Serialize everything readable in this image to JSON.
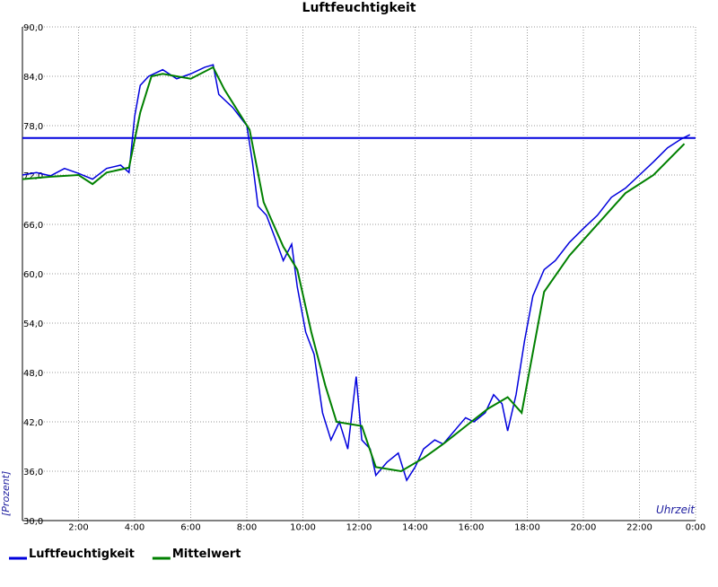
{
  "chart_data": {
    "type": "line",
    "title": "Luftfeuchtigkeit",
    "x_label": "Uhrzeit",
    "y_label": "[Prozent]",
    "xlim": [
      0,
      24
    ],
    "xticks": [
      {
        "value": 2,
        "label": "2:00"
      },
      {
        "value": 4,
        "label": "4:00"
      },
      {
        "value": 6,
        "label": "6:00"
      },
      {
        "value": 8,
        "label": "8:00"
      },
      {
        "value": 10,
        "label": "10:00"
      },
      {
        "value": 12,
        "label": "12:00"
      },
      {
        "value": 14,
        "label": "14:00"
      },
      {
        "value": 16,
        "label": "16:00"
      },
      {
        "value": 18,
        "label": "18:00"
      },
      {
        "value": 20,
        "label": "20:00"
      },
      {
        "value": 22,
        "label": "22:00"
      },
      {
        "value": 24,
        "label": "0:00"
      }
    ],
    "ylim": [
      30,
      90
    ],
    "yticks": [
      {
        "value": 30,
        "label": "30,0"
      },
      {
        "value": 36,
        "label": "36,0"
      },
      {
        "value": 42,
        "label": "42,0"
      },
      {
        "value": 48,
        "label": "48,0"
      },
      {
        "value": 54,
        "label": "54,0"
      },
      {
        "value": 60,
        "label": "60,0"
      },
      {
        "value": 66,
        "label": "66,0"
      },
      {
        "value": 72,
        "label": "72,0"
      },
      {
        "value": 78,
        "label": "78,0"
      },
      {
        "value": 84,
        "label": "84,0"
      },
      {
        "value": 90,
        "label": "90,0"
      }
    ],
    "grid": true,
    "reference_line": {
      "value": 76.5,
      "color": "#0000dd"
    },
    "series": [
      {
        "name": "Luftfeuchtigkeit",
        "color": "#0000dd",
        "x": [
          0,
          0.5,
          1,
          1.5,
          2,
          2.5,
          3,
          3.5,
          3.8,
          4.0,
          4.2,
          4.5,
          5,
          5.5,
          6,
          6.5,
          6.8,
          7,
          7.5,
          8.0,
          8.2,
          8.4,
          8.7,
          9.0,
          9.3,
          9.6,
          9.8,
          10.1,
          10.4,
          10.7,
          11,
          11.3,
          11.6,
          11.9,
          12.1,
          12.4,
          12.6,
          13,
          13.4,
          13.7,
          14,
          14.3,
          14.7,
          15,
          15.4,
          15.8,
          16.1,
          16.5,
          16.8,
          17.1,
          17.3,
          17.6,
          17.9,
          18.2,
          18.6,
          19,
          19.5,
          20,
          20.5,
          21,
          21.5,
          22,
          22.5,
          23,
          23.5,
          23.8
        ],
        "values": [
          72.0,
          72.3,
          71.9,
          72.8,
          72.2,
          71.5,
          72.8,
          73.2,
          72.3,
          79.1,
          82.9,
          84.0,
          84.8,
          83.7,
          84.3,
          85.1,
          85.4,
          81.8,
          80.2,
          78.0,
          73.6,
          68.2,
          67.1,
          64.4,
          61.6,
          63.6,
          58.4,
          52.9,
          50.2,
          43.1,
          39.8,
          42.0,
          38.7,
          47.5,
          39.8,
          38.7,
          35.5,
          37.1,
          38.2,
          34.9,
          36.5,
          38.7,
          39.8,
          39.3,
          40.9,
          42.5,
          42.0,
          43.1,
          45.3,
          44.2,
          40.9,
          45.3,
          51.8,
          57.3,
          60.5,
          61.6,
          63.8,
          65.5,
          67.1,
          69.3,
          70.4,
          72.0,
          73.6,
          75.3,
          76.4,
          76.9
        ]
      },
      {
        "name": "Mittelwert",
        "color": "#008000",
        "x": [
          0,
          1,
          2,
          2.5,
          3,
          3.8,
          4.2,
          4.6,
          5,
          6,
          6.8,
          7.2,
          8.1,
          8.6,
          9.3,
          9.8,
          10.3,
          10.8,
          11.2,
          12.1,
          12.6,
          13.5,
          14.3,
          15,
          16,
          16.6,
          17.3,
          17.8,
          18.6,
          19.5,
          20.5,
          21.5,
          22.5,
          23.6
        ],
        "values": [
          71.5,
          71.8,
          72.0,
          70.9,
          72.3,
          72.9,
          79.6,
          84.0,
          84.3,
          83.7,
          85.1,
          82.4,
          77.5,
          68.7,
          63.3,
          60.5,
          52.9,
          46.4,
          42.0,
          41.5,
          36.5,
          36.0,
          37.6,
          39.3,
          42.0,
          43.6,
          45.0,
          43.1,
          57.8,
          62.2,
          66.0,
          69.8,
          72.0,
          75.8
        ]
      }
    ]
  }
}
